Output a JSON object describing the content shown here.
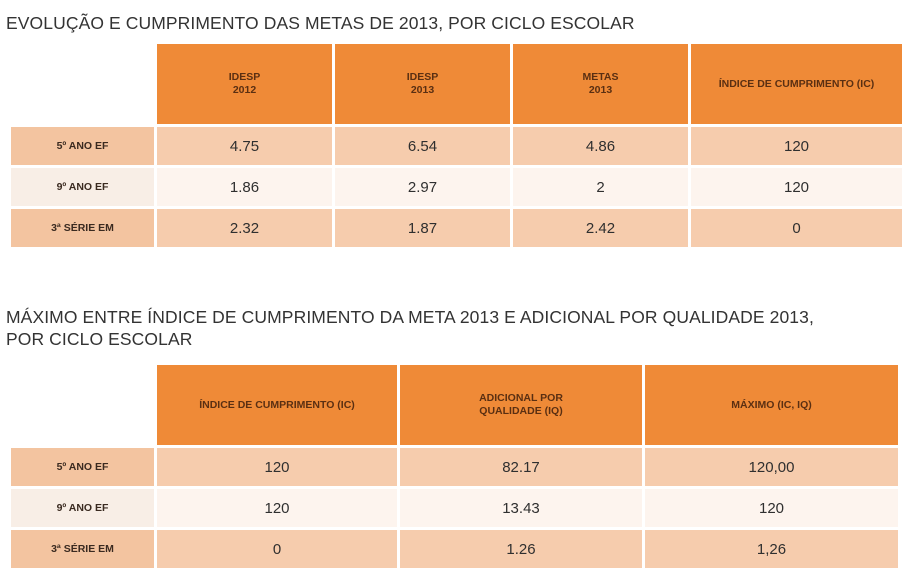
{
  "table1": {
    "title": "EVOLUÇÃO E CUMPRIMENTO DAS METAS DE 2013, POR CICLO ESCOLAR",
    "headers": [
      {
        "line1": "IDESP",
        "line2": "2012"
      },
      {
        "line1": "IDESP",
        "line2": "2013"
      },
      {
        "line1": "METAS",
        "line2": "2013"
      },
      {
        "line1": "ÍNDICE DE CUMPRIMENTO (IC)",
        "line2": ""
      }
    ],
    "rows": [
      {
        "label": "5º ANO EF",
        "cells": [
          "4.75",
          "6.54",
          "4.86",
          "120"
        ]
      },
      {
        "label": "9º ANO EF",
        "cells": [
          "1.86",
          "2.97",
          "2",
          "120"
        ]
      },
      {
        "label": "3ª SÉRIE EM",
        "cells": [
          "2.32",
          "1.87",
          "2.42",
          "0"
        ]
      }
    ]
  },
  "table2": {
    "title_line1": "MÁXIMO ENTRE ÍNDICE DE CUMPRIMENTO DA META 2013 E ADICIONAL POR QUALIDADE 2013,",
    "title_line2": "POR CICLO ESCOLAR",
    "headers": [
      {
        "line1": "ÍNDICE DE CUMPRIMENTO (IC)",
        "line2": ""
      },
      {
        "line1": "ADICIONAL POR",
        "line2": "QUALIDADE (IQ)"
      },
      {
        "line1": "MÁXIMO (IC, IQ)",
        "line2": ""
      }
    ],
    "rows": [
      {
        "label": "5º ANO EF",
        "cells": [
          "120",
          "82.17",
          "120,00"
        ]
      },
      {
        "label": "9º ANO EF",
        "cells": [
          "120",
          "13.43",
          "120"
        ]
      },
      {
        "label": "3ª SÉRIE EM",
        "cells": [
          "0",
          "1.26",
          "1,26"
        ]
      }
    ]
  },
  "colors": {
    "header_orange": "#ef8a37",
    "row_peach": "#f6ccad",
    "row_light": "#fdf4ee"
  }
}
